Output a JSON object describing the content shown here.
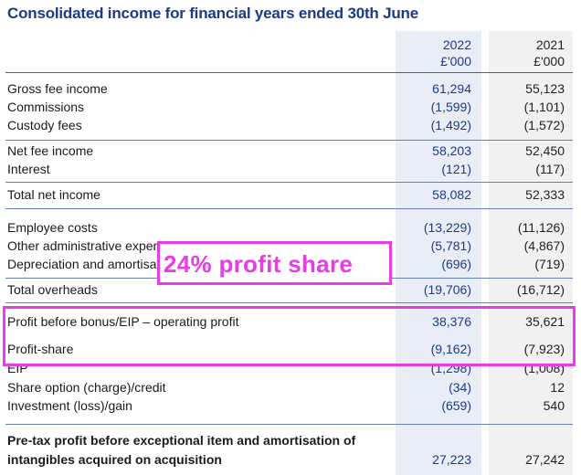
{
  "title": "Consolidated income for financial years ended 30th June",
  "columns": [
    {
      "year": "2022",
      "unit": "£'000"
    },
    {
      "year": "2021",
      "unit": "£'000"
    }
  ],
  "rows": [
    {
      "label": "Gross fee income",
      "v2022": "61,294",
      "v2021": "55,123"
    },
    {
      "label": "Commissions",
      "v2022": "(1,599)",
      "v2021": "(1,101)"
    },
    {
      "label": "Custody fees",
      "v2022": "(1,492)",
      "v2021": "(1,572)"
    },
    {
      "label": "Net fee income",
      "v2022": "58,203",
      "v2021": "52,450"
    },
    {
      "label": "Interest",
      "v2022": "(121)",
      "v2021": "(117)"
    },
    {
      "label": "Total net income",
      "v2022": "58,082",
      "v2021": "52,333"
    },
    {
      "label": "Employee costs",
      "v2022": "(13,229)",
      "v2021": "(11,126)"
    },
    {
      "label": "Other administrative expenses",
      "v2022": "(5,781)",
      "v2021": "(4,867)"
    },
    {
      "label": "Depreciation and amortisation",
      "v2022": "(696)",
      "v2021": "(719)"
    },
    {
      "label": "Total overheads",
      "v2022": "(19,706)",
      "v2021": "(16,712)"
    },
    {
      "label": "Profit before bonus/EIP – operating profit",
      "v2022": "38,376",
      "v2021": "35,621"
    },
    {
      "label": "Profit-share",
      "v2022": "(9,162)",
      "v2021": "(7,923)"
    },
    {
      "label": "EIP",
      "v2022": "(1,298)",
      "v2021": "(1,008)"
    },
    {
      "label": "Share option (charge)/credit",
      "v2022": "(34)",
      "v2021": "12"
    },
    {
      "label": "Investment (loss)/gain",
      "v2022": "(659)",
      "v2021": "540"
    },
    {
      "label": "Pre-tax profit before exceptional item and amortisation of",
      "label2": "intangibles acquired on acquisition",
      "v2022": "27,223",
      "v2021": "27,242"
    }
  ],
  "annotation": {
    "text": "24% profit share",
    "color": "#e83ce8"
  }
}
